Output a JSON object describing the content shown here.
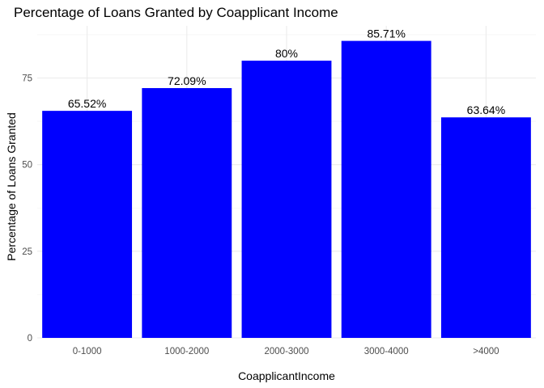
{
  "chart_data": {
    "type": "bar",
    "title": "Percentage of Loans Granted by Coapplicant Income",
    "xlabel": "CoapplicantIncome",
    "ylabel": "Percentage of Loans Granted",
    "categories": [
      "0-1000",
      "1000-2000",
      "2000-3000",
      "3000-4000",
      ">4000"
    ],
    "values": [
      65.52,
      72.09,
      80,
      85.71,
      63.64
    ],
    "data_labels": [
      "65.52%",
      "72.09%",
      "80%",
      "85.71%",
      "63.64%"
    ],
    "ylim": [
      0,
      90
    ],
    "yticks": [
      0,
      25,
      50,
      75
    ],
    "ytick_labels": [
      "0",
      "25",
      "50",
      "75"
    ],
    "bar_color": "#0000ff",
    "grid": true,
    "legend": "none"
  }
}
